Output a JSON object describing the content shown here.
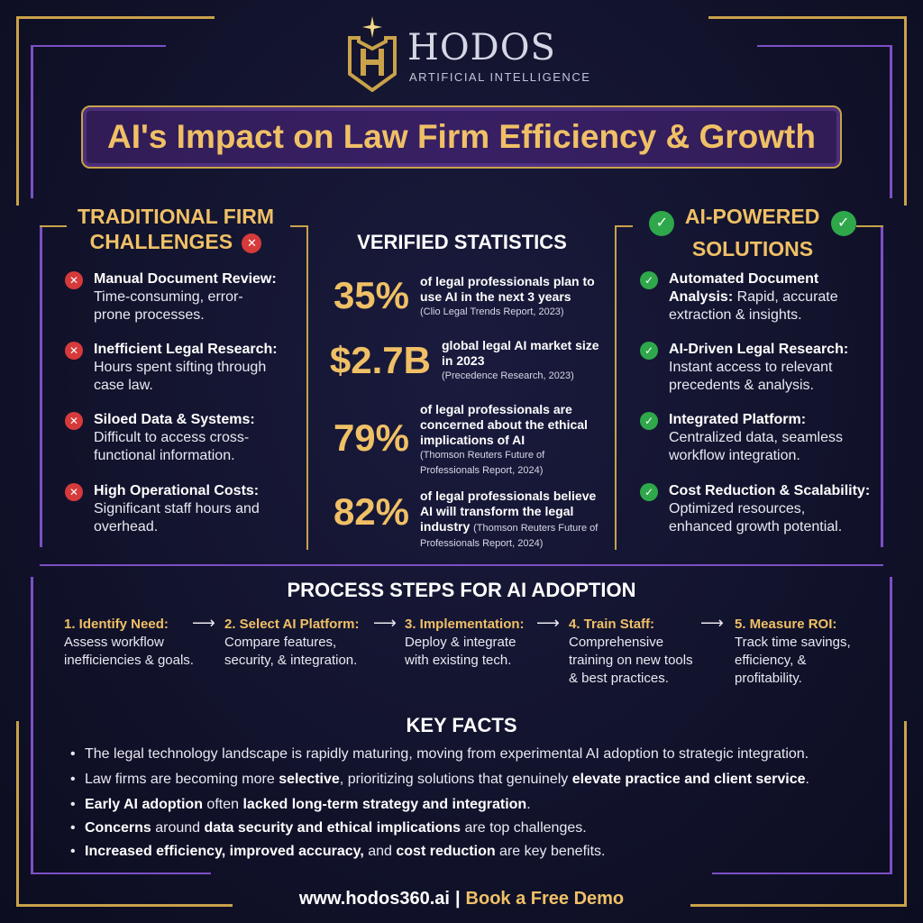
{
  "brand": {
    "name": "HODOS",
    "subtitle": "ARTIFICIAL INTELLIGENCE"
  },
  "title": "AI's Impact on Law Firm Efficiency & Growth",
  "colors": {
    "gold": "#f0c066",
    "frame_gold": "#c9a24a",
    "frame_purple": "#7d4fc4",
    "error_red": "#d63a3a",
    "success_green": "#2ea84a"
  },
  "challenges": {
    "heading_line1": "TRADITIONAL FIRM",
    "heading_line2": "CHALLENGES",
    "heading_icon": "x-circle-icon",
    "items": [
      {
        "bold": "Manual Document Review:",
        "line1": "Time-consuming, error-",
        "line2": "prone processes."
      },
      {
        "bold": "Inefficient Legal Research:",
        "line1": "Hours spent sifting through",
        "line2": "case law."
      },
      {
        "bold": "Siloed Data & Systems:",
        "line1": "Difficult to access cross-",
        "line2": "functional information."
      },
      {
        "bold": "High Operational Costs:",
        "line1": "Significant staff hours and",
        "line2": "overhead."
      }
    ]
  },
  "statistics": {
    "heading": "VERIFIED STATISTICS",
    "items": [
      {
        "value": "35%",
        "line1": "of legal professionals plan to",
        "line2": "use AI in the next 3 years",
        "source": "(Clio Legal Trends Report, 2023)"
      },
      {
        "value": "$2.7B",
        "line1": "global legal AI market size",
        "line2": "in 2023",
        "source": "(Precedence Research, 2023)"
      },
      {
        "value": "79%",
        "line1": "of legal professionals are",
        "line2": "concerned about the ethical",
        "line3": "implications of AI",
        "source1": "(Thomson Reuters Future of",
        "source2": "Professionals Report, 2024)"
      },
      {
        "value": "82%",
        "line1": "of legal professionals believe",
        "line2": "AI will transform the legal",
        "line3": "industry",
        "source1": "(Thomson Reuters Future of",
        "source2": "Professionals Report, 2024)"
      }
    ]
  },
  "solutions": {
    "heading_line1": "AI-POWERED",
    "heading_line2": "SOLUTIONS",
    "items": [
      {
        "bold1": "Automated Document",
        "bold2": "Analysis:",
        "rest2": " Rapid, accurate",
        "line3": "extraction & insights."
      },
      {
        "bold": "AI-Driven Legal Research:",
        "line1": "Instant access to relevant",
        "line2": "precedents & analysis."
      },
      {
        "bold": "Integrated Platform:",
        "line1": "Centralized data, seamless",
        "line2": "workflow integration."
      },
      {
        "bold": "Cost Reduction & Scalability:",
        "line1": "Optimized resources,",
        "line2": "enhanced growth potential."
      }
    ]
  },
  "process": {
    "heading": "PROCESS STEPS FOR AI ADOPTION",
    "arrow": "⟶",
    "steps": [
      {
        "title": "1. Identify Need:",
        "line1": "Assess workflow",
        "line2": "inefficiencies & goals."
      },
      {
        "title": "2. Select AI Platform:",
        "line1": "Compare features,",
        "line2": "security, & integration."
      },
      {
        "title": "3. Implementation:",
        "line1": "Deploy & integrate",
        "line2": "with existing tech."
      },
      {
        "title": "4. Train Staff:",
        "line1": "Comprehensive",
        "line2": "training on new tools",
        "line3": "& best practices."
      },
      {
        "title": "5. Measure ROI:",
        "line1": "Track time savings,",
        "line2": "efficiency, &",
        "line3": "profitability."
      }
    ]
  },
  "key_facts": {
    "heading": "KEY FACTS",
    "bullet": "•",
    "f1": {
      "a": "The legal technology landscape is rapidly maturing, moving from experimental AI adoption to strategic integration."
    },
    "f2": {
      "a": "Law firms are becoming more ",
      "b": "selective",
      "c": ", prioritizing solutions that genuinely ",
      "d": "elevate practice and client service",
      "e": "."
    },
    "f3": {
      "a": "Early AI adoption",
      "b": " often ",
      "c": "lacked long-term strategy and integration",
      "d": "."
    },
    "f4": {
      "a": "Concerns",
      "b": " around ",
      "c": "data security and ethical implications",
      "d": " are top challenges."
    },
    "f5": {
      "a": "Increased efficiency, improved accuracy,",
      "b": " and ",
      "c": "cost reduction",
      "d": " are key benefits."
    }
  },
  "footer": {
    "url": "www.hodos360.ai",
    "separator": "|",
    "cta": "Book a Free Demo"
  }
}
